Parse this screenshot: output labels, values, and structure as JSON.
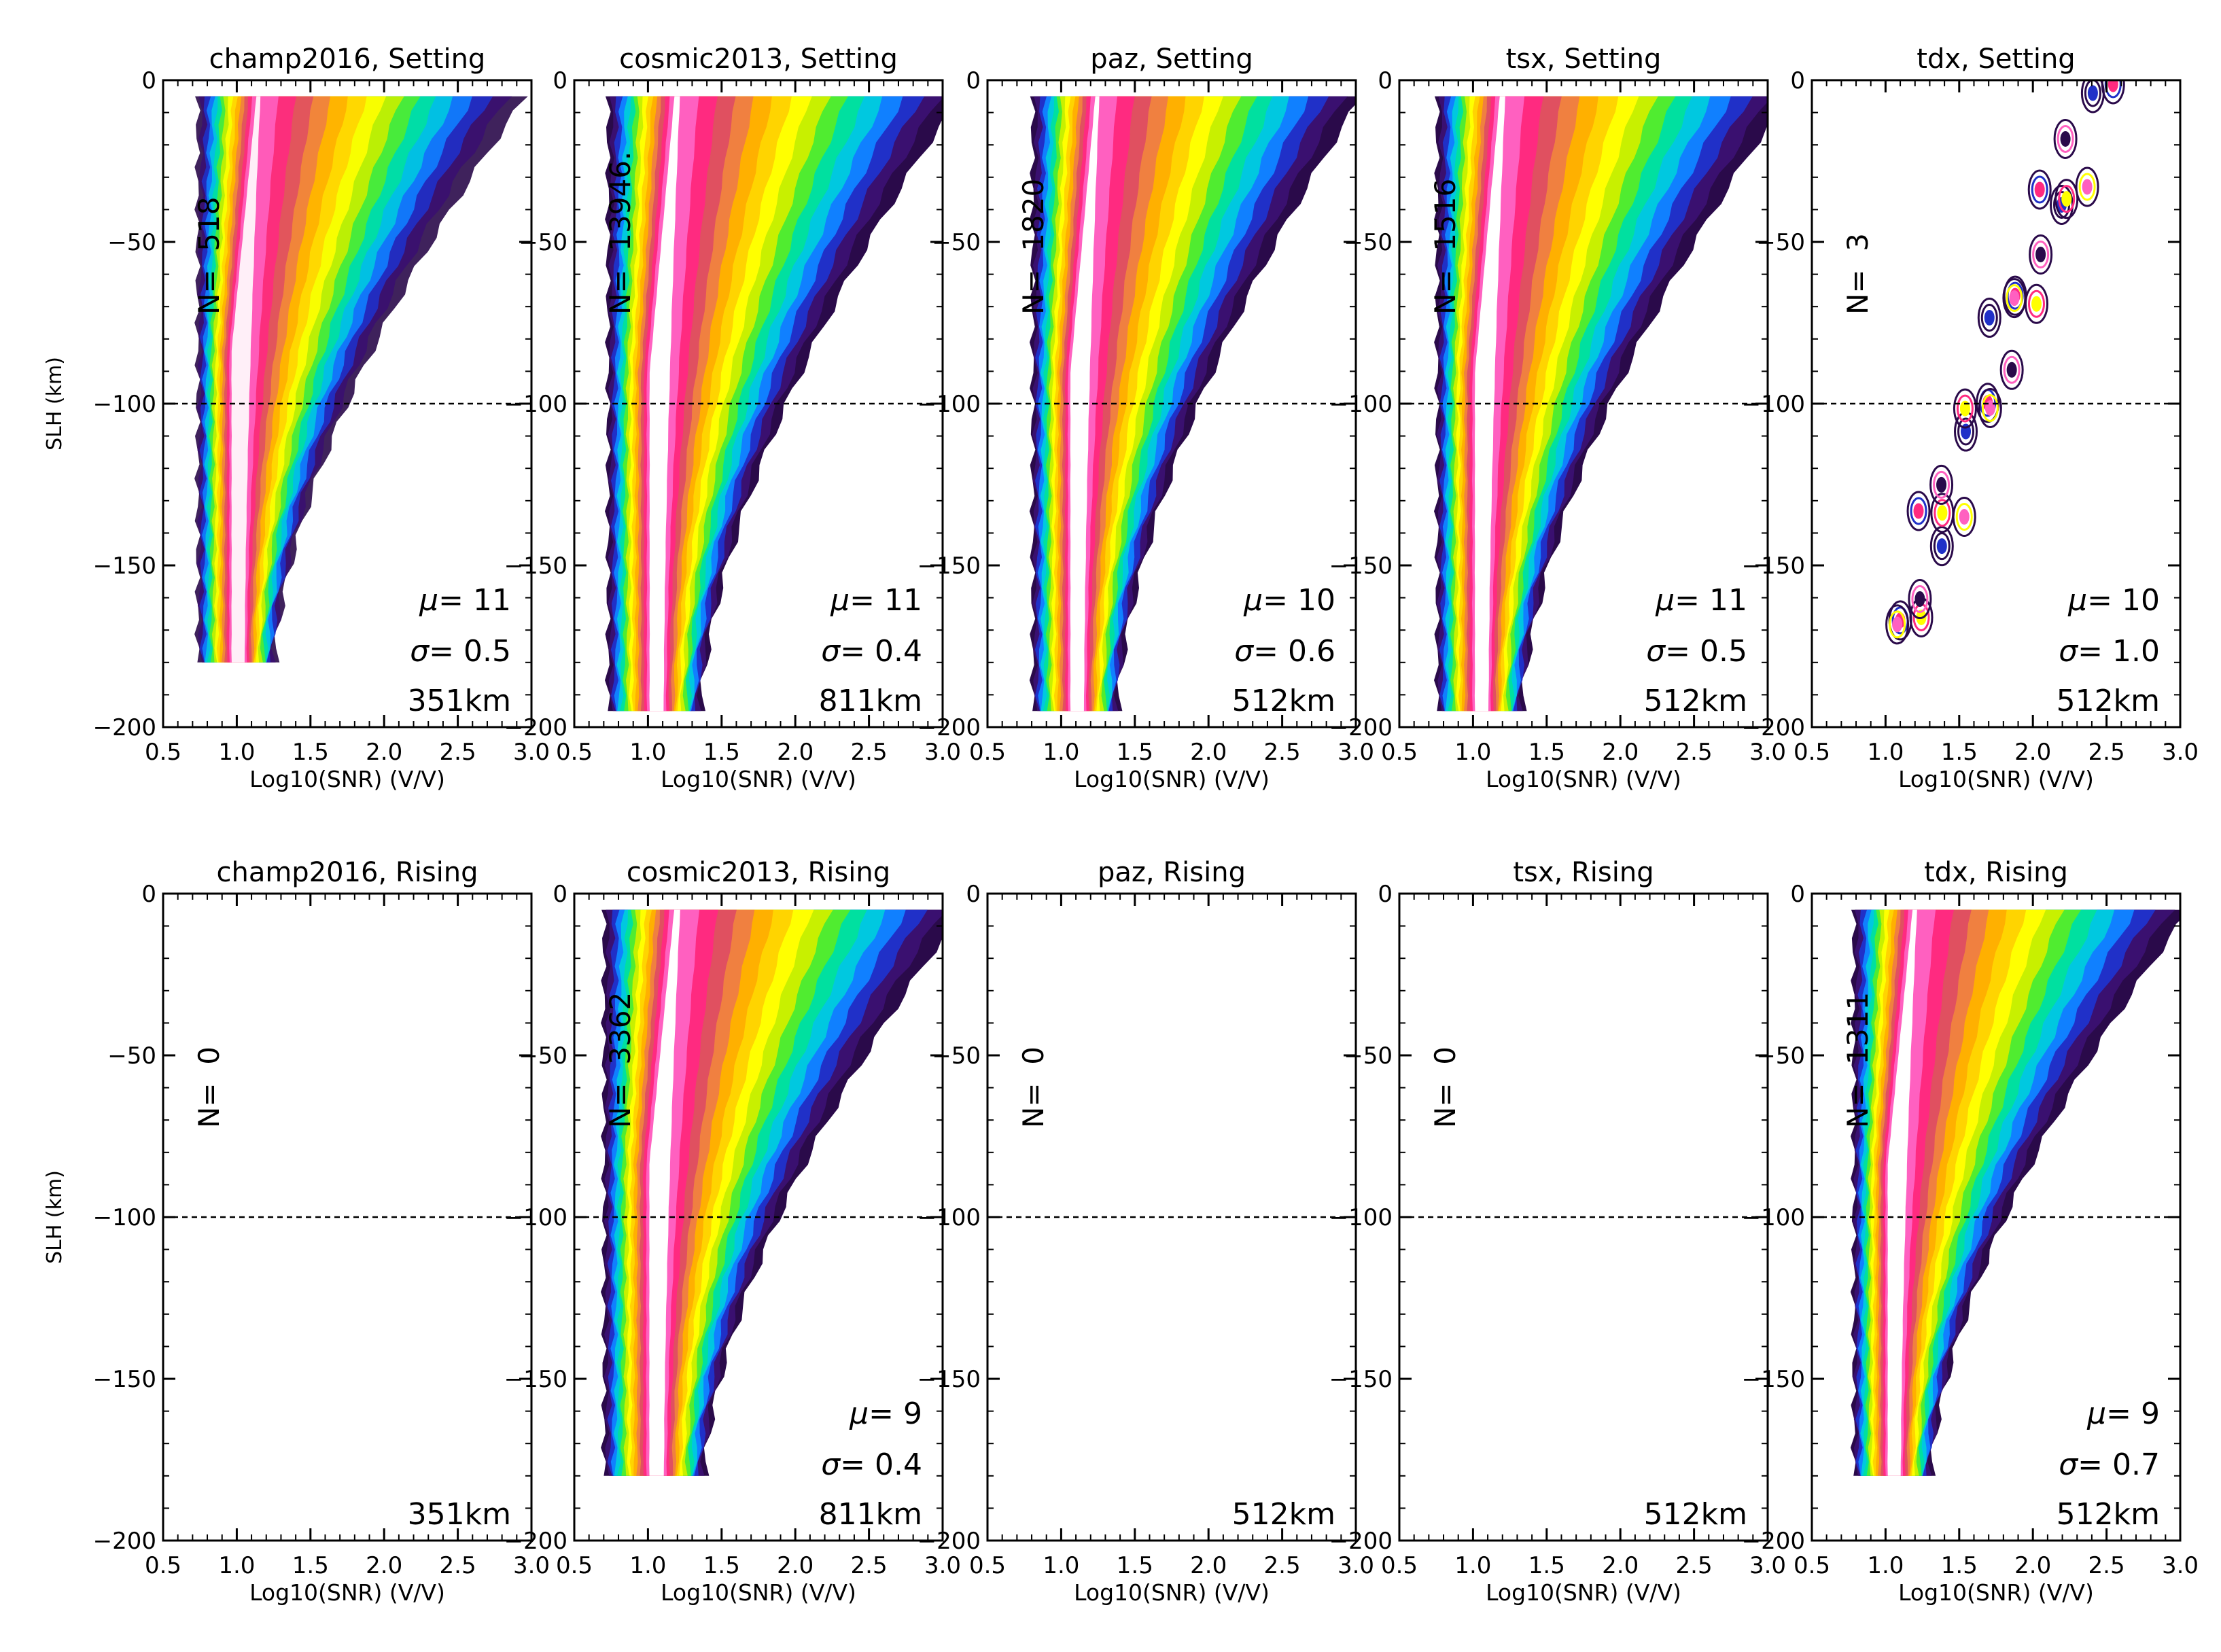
{
  "figure": {
    "ylabel": "SLH (km)",
    "xlabel": "Log10(SNR) (V/V)"
  },
  "chart_data": [
    {
      "type": "heatmap",
      "title": "champ2016, Setting",
      "n_label": "N=",
      "n_value": "518",
      "mu_label": "μ=",
      "mu_value": "11",
      "sigma_label": "σ=",
      "sigma_value": "0.5",
      "altitude": "351km",
      "xlim": [
        0.5,
        3.0
      ],
      "ylim": [
        -200,
        0
      ],
      "x_ticks": [
        "0.5",
        "1.0",
        "1.5",
        "2.0",
        "2.5",
        "3.0"
      ],
      "y_ticks": [
        "0",
        "−50",
        "−100",
        "−150",
        "−200"
      ],
      "reference_line_y": -100,
      "ylabel": "SLH (km)",
      "xlabel": "Log10(SNR) (V/V)",
      "density": {
        "shape": "sparse",
        "core_x": 1.0,
        "top_y": -5,
        "bottom_y": -180,
        "spread": 0.45,
        "tail_x": 2.7
      }
    },
    {
      "type": "heatmap",
      "title": "cosmic2013, Setting",
      "n_label": "N=",
      "n_value": "13946.",
      "mu_label": "μ=",
      "mu_value": "11",
      "sigma_label": "σ=",
      "sigma_value": "0.4",
      "altitude": "811km",
      "xlim": [
        0.5,
        3.0
      ],
      "ylim": [
        -200,
        0
      ],
      "x_ticks": [
        "0.5",
        "1.0",
        "1.5",
        "2.0",
        "2.5",
        "3.0"
      ],
      "y_ticks": [
        "0",
        "−50",
        "−100",
        "−150",
        "−200"
      ],
      "reference_line_y": -100,
      "xlabel": "Log10(SNR) (V/V)",
      "density": {
        "shape": "full",
        "core_x": 1.05,
        "top_y": -5,
        "bottom_y": -195,
        "spread": 0.55,
        "tail_x": 2.8
      }
    },
    {
      "type": "heatmap",
      "title": "paz, Setting",
      "n_label": "N=",
      "n_value": "1820",
      "mu_label": "μ=",
      "mu_value": "10",
      "sigma_label": "σ=",
      "sigma_value": "0.6",
      "altitude": "512km",
      "xlim": [
        0.5,
        3.0
      ],
      "ylim": [
        -200,
        0
      ],
      "x_ticks": [
        "0.5",
        "1.0",
        "1.5",
        "2.0",
        "2.5",
        "3.0"
      ],
      "y_ticks": [
        "0",
        "−50",
        "−100",
        "−150",
        "−200"
      ],
      "reference_line_y": -100,
      "xlabel": "Log10(SNR) (V/V)",
      "density": {
        "shape": "full",
        "core_x": 1.1,
        "top_y": -5,
        "bottom_y": -195,
        "spread": 0.5,
        "tail_x": 2.75
      }
    },
    {
      "type": "heatmap",
      "title": "tsx, Setting",
      "n_label": "N=",
      "n_value": "1516",
      "mu_label": "μ=",
      "mu_value": "11",
      "sigma_label": "σ=",
      "sigma_value": "0.5",
      "altitude": "512km",
      "xlim": [
        0.5,
        3.0
      ],
      "ylim": [
        -200,
        0
      ],
      "x_ticks": [
        "0.5",
        "1.0",
        "1.5",
        "2.0",
        "2.5",
        "3.0"
      ],
      "y_ticks": [
        "0",
        "−50",
        "−100",
        "−150",
        "−200"
      ],
      "reference_line_y": -100,
      "xlabel": "Log10(SNR) (V/V)",
      "density": {
        "shape": "full",
        "core_x": 1.05,
        "top_y": -5,
        "bottom_y": -195,
        "spread": 0.5,
        "tail_x": 2.85
      }
    },
    {
      "type": "heatmap",
      "title": "tdx, Setting",
      "n_label": "N=",
      "n_value": "3",
      "mu_label": "μ=",
      "mu_value": "10",
      "sigma_label": "σ=",
      "sigma_value": "1.0",
      "altitude": "512km",
      "xlim": [
        0.5,
        3.0
      ],
      "ylim": [
        -200,
        0
      ],
      "x_ticks": [
        "0.5",
        "1.0",
        "1.5",
        "2.0",
        "2.5",
        "3.0"
      ],
      "y_ticks": [
        "0",
        "−50",
        "−100",
        "−150",
        "−200"
      ],
      "reference_line_y": -100,
      "xlabel": "Log10(SNR) (V/V)",
      "density": {
        "shape": "dots",
        "core_x": 1.1,
        "top_y": -5,
        "bottom_y": -175,
        "spread": 0.1,
        "tail_x": 2.45
      }
    },
    {
      "type": "heatmap",
      "title": "champ2016, Rising",
      "n_label": "N=",
      "n_value": "0",
      "mu_label": "",
      "mu_value": "",
      "sigma_label": "",
      "sigma_value": "",
      "altitude": "351km",
      "xlim": [
        0.5,
        3.0
      ],
      "ylim": [
        -200,
        0
      ],
      "x_ticks": [
        "0.5",
        "1.0",
        "1.5",
        "2.0",
        "2.5",
        "3.0"
      ],
      "y_ticks": [
        "0",
        "−50",
        "−100",
        "−150",
        "−200"
      ],
      "reference_line_y": -100,
      "ylabel": "SLH (km)",
      "xlabel": "Log10(SNR) (V/V)",
      "density": {
        "shape": "empty"
      }
    },
    {
      "type": "heatmap",
      "title": "cosmic2013, Rising",
      "n_label": "N=",
      "n_value": "3362",
      "mu_label": "μ=",
      "mu_value": "9",
      "sigma_label": "σ=",
      "sigma_value": "0.4",
      "altitude": "811km",
      "xlim": [
        0.5,
        3.0
      ],
      "ylim": [
        -200,
        0
      ],
      "x_ticks": [
        "0.5",
        "1.0",
        "1.5",
        "2.0",
        "2.5",
        "3.0"
      ],
      "y_ticks": [
        "0",
        "−50",
        "−100",
        "−150",
        "−200"
      ],
      "reference_line_y": -100,
      "xlabel": "Log10(SNR) (V/V)",
      "density": {
        "shape": "full",
        "core_x": 1.05,
        "top_y": -5,
        "bottom_y": -180,
        "spread": 0.6,
        "tail_x": 2.8
      }
    },
    {
      "type": "heatmap",
      "title": "paz, Rising",
      "n_label": "N=",
      "n_value": "0",
      "mu_label": "",
      "mu_value": "",
      "sigma_label": "",
      "sigma_value": "",
      "altitude": "512km",
      "xlim": [
        0.5,
        3.0
      ],
      "ylim": [
        -200,
        0
      ],
      "x_ticks": [
        "0.5",
        "1.0",
        "1.5",
        "2.0",
        "2.5",
        "3.0"
      ],
      "y_ticks": [
        "0",
        "−50",
        "−100",
        "−150",
        "−200"
      ],
      "reference_line_y": -100,
      "xlabel": "Log10(SNR) (V/V)",
      "density": {
        "shape": "empty"
      }
    },
    {
      "type": "heatmap",
      "title": "tsx, Rising",
      "n_label": "N=",
      "n_value": "0",
      "mu_label": "",
      "mu_value": "",
      "sigma_label": "",
      "sigma_value": "",
      "altitude": "512km",
      "xlim": [
        0.5,
        3.0
      ],
      "ylim": [
        -200,
        0
      ],
      "x_ticks": [
        "0.5",
        "1.0",
        "1.5",
        "2.0",
        "2.5",
        "3.0"
      ],
      "y_ticks": [
        "0",
        "−50",
        "−100",
        "−150",
        "−200"
      ],
      "reference_line_y": -100,
      "xlabel": "Log10(SNR) (V/V)",
      "density": {
        "shape": "empty"
      }
    },
    {
      "type": "heatmap",
      "title": "tdx, Rising",
      "n_label": "N=",
      "n_value": "1311",
      "mu_label": "μ=",
      "mu_value": "9",
      "sigma_label": "σ=",
      "sigma_value": "0.7",
      "altitude": "512km",
      "xlim": [
        0.5,
        3.0
      ],
      "ylim": [
        -200,
        0
      ],
      "x_ticks": [
        "0.5",
        "1.0",
        "1.5",
        "2.0",
        "2.5",
        "3.0"
      ],
      "y_ticks": [
        "0",
        "−50",
        "−100",
        "−150",
        "−200"
      ],
      "reference_line_y": -100,
      "xlabel": "Log10(SNR) (V/V)",
      "density": {
        "shape": "full",
        "core_x": 1.05,
        "top_y": -5,
        "bottom_y": -180,
        "spread": 0.45,
        "tail_x": 2.8
      }
    }
  ]
}
